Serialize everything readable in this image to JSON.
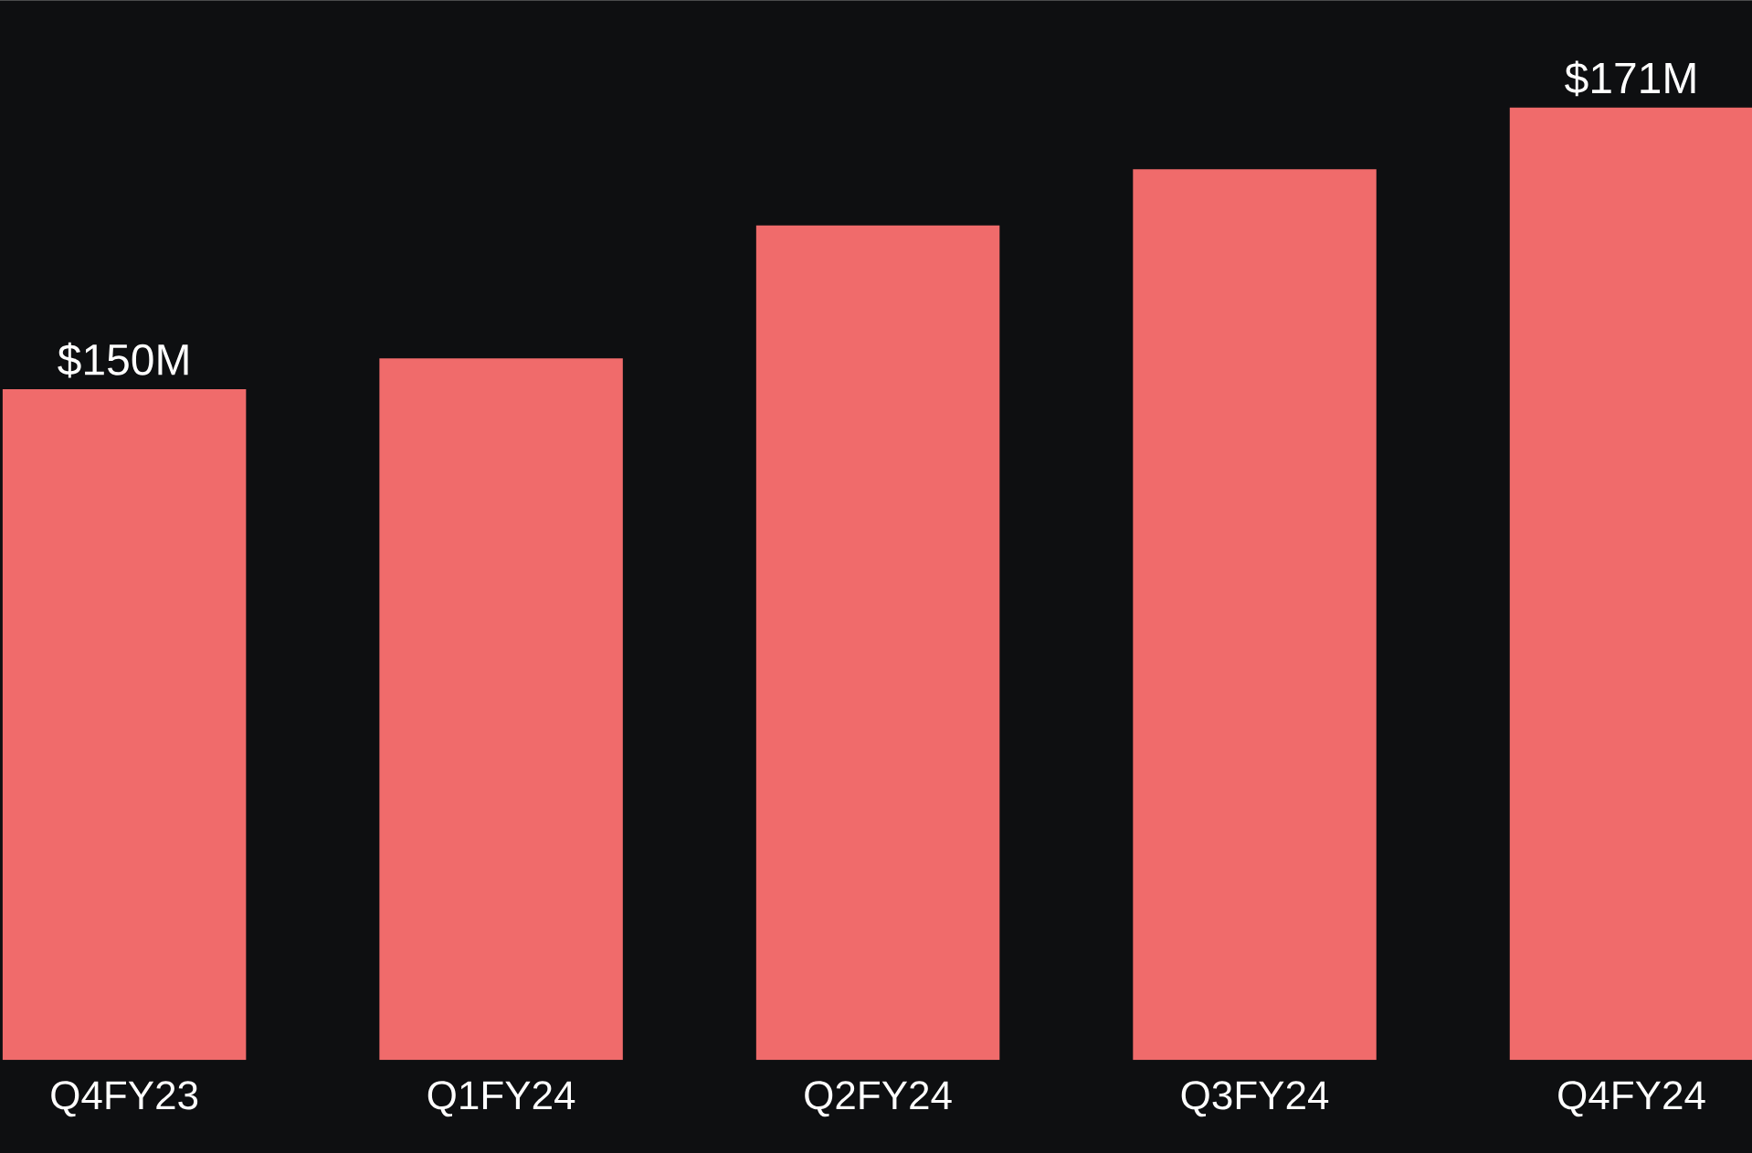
{
  "chart_data": {
    "type": "bar",
    "categories": [
      "Q4FY23",
      "Q1FY24",
      "Q2FY24",
      "Q3FY24",
      "Q4FY24"
    ],
    "values": [
      150,
      152.3,
      162.2,
      166.4,
      171
    ],
    "value_labels": [
      "$150M",
      null,
      null,
      null,
      "$171M"
    ],
    "color": "#f06b6b",
    "ylim": [
      100,
      179
    ]
  }
}
